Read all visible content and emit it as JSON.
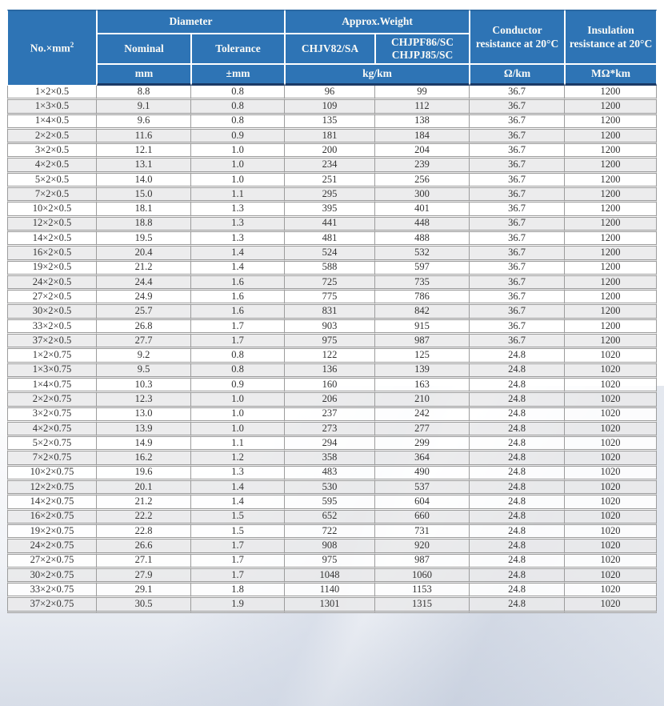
{
  "table": {
    "header": {
      "no_label": "No.×mm",
      "no_sup": "2",
      "diameter": "Diameter",
      "approx_weight": "Approx.Weight",
      "nominal": "Nominal",
      "tolerance": "Tolerance",
      "weight_type_1": "CHJV82/SA",
      "weight_type_2_line1": "CHJPF86/SC",
      "weight_type_2_line2": "CHJPJ85/SC",
      "conductor_resistance": "Conductor resistance at 20°C",
      "insulation_resistance": "Insulation resistance at 20°C",
      "unit_mm": "mm",
      "unit_tolerance": "±mm",
      "unit_weight": "kg/km",
      "unit_conductor": "Ω/km",
      "unit_insulation": "MΩ*km"
    },
    "column_keys": [
      "no",
      "nominal-diameter",
      "tolerance",
      "weight-chjv82sa",
      "weight-chjpf86sc",
      "conductor-resistance",
      "insulation-resistance"
    ],
    "rows": [
      [
        "1×2×0.5",
        "8.8",
        "0.8",
        "96",
        "99",
        "36.7",
        "1200"
      ],
      [
        "1×3×0.5",
        "9.1",
        "0.8",
        "109",
        "112",
        "36.7",
        "1200"
      ],
      [
        "1×4×0.5",
        "9.6",
        "0.8",
        "135",
        "138",
        "36.7",
        "1200"
      ],
      [
        "2×2×0.5",
        "11.6",
        "0.9",
        "181",
        "184",
        "36.7",
        "1200"
      ],
      [
        "3×2×0.5",
        "12.1",
        "1.0",
        "200",
        "204",
        "36.7",
        "1200"
      ],
      [
        "4×2×0.5",
        "13.1",
        "1.0",
        "234",
        "239",
        "36.7",
        "1200"
      ],
      [
        "5×2×0.5",
        "14.0",
        "1.0",
        "251",
        "256",
        "36.7",
        "1200"
      ],
      [
        "7×2×0.5",
        "15.0",
        "1.1",
        "295",
        "300",
        "36.7",
        "1200"
      ],
      [
        "10×2×0.5",
        "18.1",
        "1.3",
        "395",
        "401",
        "36.7",
        "1200"
      ],
      [
        "12×2×0.5",
        "18.8",
        "1.3",
        "441",
        "448",
        "36.7",
        "1200"
      ],
      [
        "14×2×0.5",
        "19.5",
        "1.3",
        "481",
        "488",
        "36.7",
        "1200"
      ],
      [
        "16×2×0.5",
        "20.4",
        "1.4",
        "524",
        "532",
        "36.7",
        "1200"
      ],
      [
        "19×2×0.5",
        "21.2",
        "1.4",
        "588",
        "597",
        "36.7",
        "1200"
      ],
      [
        "24×2×0.5",
        "24.4",
        "1.6",
        "725",
        "735",
        "36.7",
        "1200"
      ],
      [
        "27×2×0.5",
        "24.9",
        "1.6",
        "775",
        "786",
        "36.7",
        "1200"
      ],
      [
        "30×2×0.5",
        "25.7",
        "1.6",
        "831",
        "842",
        "36.7",
        "1200"
      ],
      [
        "33×2×0.5",
        "26.8",
        "1.7",
        "903",
        "915",
        "36.7",
        "1200"
      ],
      [
        "37×2×0.5",
        "27.7",
        "1.7",
        "975",
        "987",
        "36.7",
        "1200"
      ],
      [
        "1×2×0.75",
        "9.2",
        "0.8",
        "122",
        "125",
        "24.8",
        "1020"
      ],
      [
        "1×3×0.75",
        "9.5",
        "0.8",
        "136",
        "139",
        "24.8",
        "1020"
      ],
      [
        "1×4×0.75",
        "10.3",
        "0.9",
        "160",
        "163",
        "24.8",
        "1020"
      ],
      [
        "2×2×0.75",
        "12.3",
        "1.0",
        "206",
        "210",
        "24.8",
        "1020"
      ],
      [
        "3×2×0.75",
        "13.0",
        "1.0",
        "237",
        "242",
        "24.8",
        "1020"
      ],
      [
        "4×2×0.75",
        "13.9",
        "1.0",
        "273",
        "277",
        "24.8",
        "1020"
      ],
      [
        "5×2×0.75",
        "14.9",
        "1.1",
        "294",
        "299",
        "24.8",
        "1020"
      ],
      [
        "7×2×0.75",
        "16.2",
        "1.2",
        "358",
        "364",
        "24.8",
        "1020"
      ],
      [
        "10×2×0.75",
        "19.6",
        "1.3",
        "483",
        "490",
        "24.8",
        "1020"
      ],
      [
        "12×2×0.75",
        "20.1",
        "1.4",
        "530",
        "537",
        "24.8",
        "1020"
      ],
      [
        "14×2×0.75",
        "21.2",
        "1.4",
        "595",
        "604",
        "24.8",
        "1020"
      ],
      [
        "16×2×0.75",
        "22.2",
        "1.5",
        "652",
        "660",
        "24.8",
        "1020"
      ],
      [
        "19×2×0.75",
        "22.8",
        "1.5",
        "722",
        "731",
        "24.8",
        "1020"
      ],
      [
        "24×2×0.75",
        "26.6",
        "1.7",
        "908",
        "920",
        "24.8",
        "1020"
      ],
      [
        "27×2×0.75",
        "27.1",
        "1.7",
        "975",
        "987",
        "24.8",
        "1020"
      ],
      [
        "30×2×0.75",
        "27.9",
        "1.7",
        "1048",
        "1060",
        "24.8",
        "1020"
      ],
      [
        "33×2×0.75",
        "29.1",
        "1.8",
        "1140",
        "1153",
        "24.8",
        "1020"
      ],
      [
        "37×2×0.75",
        "30.5",
        "1.9",
        "1301",
        "1315",
        "24.8",
        "1020"
      ]
    ]
  },
  "colors": {
    "header_bg": "#2E74B5",
    "header_text": "#FAFAF6",
    "header_rule": "#1B3A66",
    "grid": "#9C9C9C",
    "row_alt": "#ECECEE",
    "text": "#333333"
  }
}
